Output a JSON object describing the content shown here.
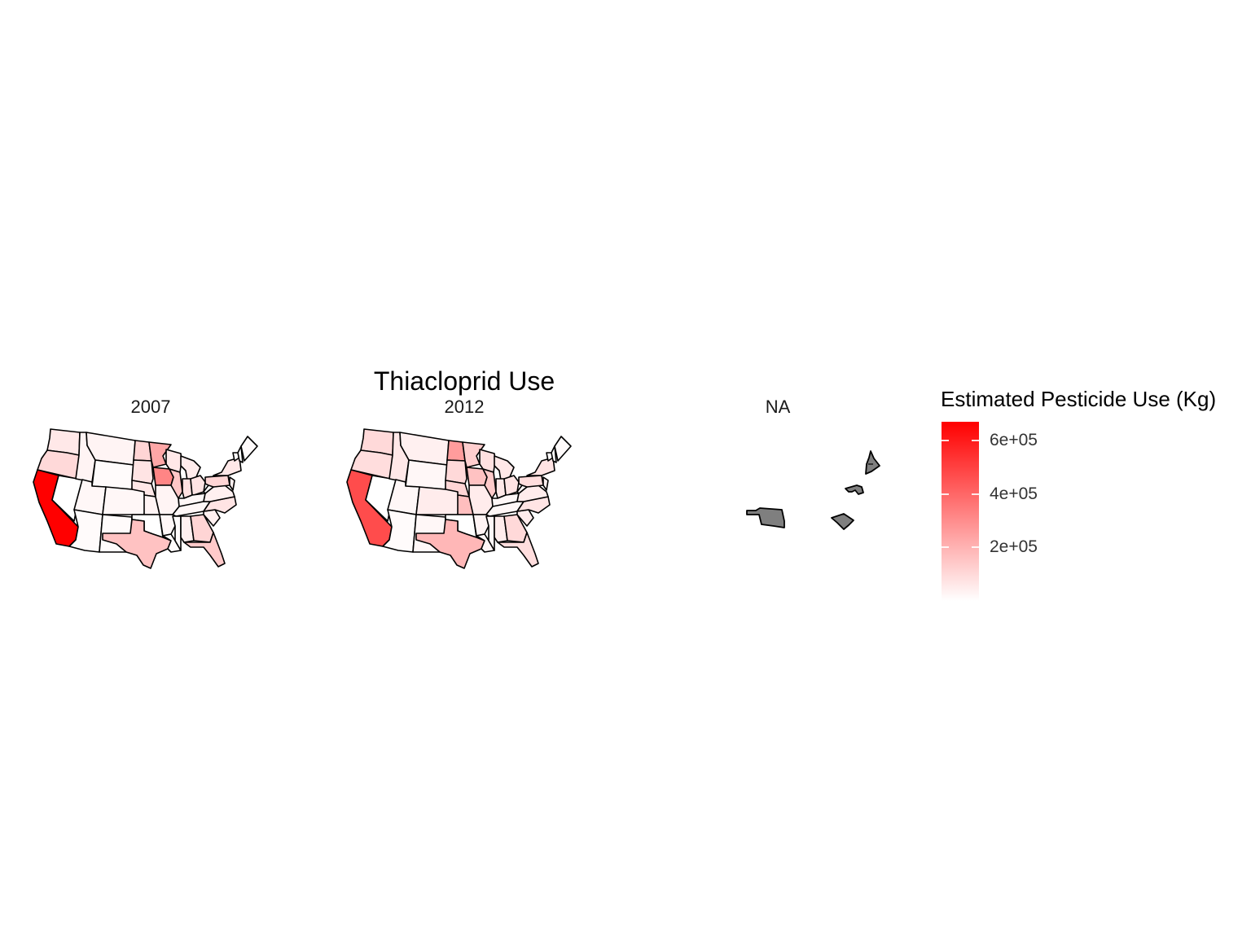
{
  "title": "Thiacloprid Use",
  "facets": [
    {
      "label": "2007"
    },
    {
      "label": "2012"
    },
    {
      "label": "NA"
    }
  ],
  "legend": {
    "title": "Estimated Pesticide Use (Kg)",
    "ticks": [
      "2e+05",
      "4e+05",
      "6e+05"
    ],
    "tick_values": [
      200000,
      400000,
      600000
    ],
    "range": [
      0,
      670000
    ],
    "low_color": "#FFFFFF",
    "high_color": "#FF0000"
  },
  "colors": {
    "state_border": "#000000",
    "na_fill": "#7F7F7F"
  },
  "chart_data": {
    "type": "choropleth",
    "region": "Contiguous United States",
    "unit": "Kg",
    "series": [
      {
        "name": "2007",
        "values": {
          "CA": 670000,
          "OR": 100000,
          "WA": 60000,
          "ID": 30000,
          "NV": 0,
          "UT": 20000,
          "AZ": 10000,
          "MT": 30000,
          "WY": 10000,
          "CO": 20000,
          "NM": 10000,
          "ND": 110000,
          "SD": 70000,
          "NE": 60000,
          "KS": 30000,
          "OK": 0,
          "TX": 160000,
          "MN": 230000,
          "IA": 320000,
          "MO": 30000,
          "AR": 20000,
          "LA": 10000,
          "WI": 60000,
          "IL": 150000,
          "MI": 50000,
          "IN": 80000,
          "OH": 70000,
          "KY": 20000,
          "TN": 20000,
          "MS": 10000,
          "AL": 40000,
          "GA": 110000,
          "FL": 140000,
          "SC": 40000,
          "NC": 70000,
          "VA": 40000,
          "WV": 10000,
          "PA": 110000,
          "NY": 60000,
          "VT": 10000,
          "NH": 0,
          "ME": 10000,
          "NJ": 40000
        }
      },
      {
        "name": "2012",
        "values": {
          "CA": 470000,
          "OR": 90000,
          "WA": 100000,
          "ID": 60000,
          "NV": 0,
          "UT": 20000,
          "AZ": 10000,
          "MT": 40000,
          "WY": 20000,
          "CO": 50000,
          "NM": 20000,
          "ND": 260000,
          "SD": 100000,
          "NE": 110000,
          "KS": 170000,
          "OK": 0,
          "TX": 190000,
          "MN": 130000,
          "IA": 160000,
          "MO": 50000,
          "AR": 30000,
          "LA": 20000,
          "WI": 80000,
          "IL": 140000,
          "MI": 60000,
          "IN": 60000,
          "OH": 70000,
          "KY": 20000,
          "TN": 20000,
          "MS": 20000,
          "AL": 50000,
          "GA": 100000,
          "FL": 90000,
          "SC": 50000,
          "NC": 70000,
          "VA": 50000,
          "WV": 20000,
          "PA": 90000,
          "NY": 70000,
          "VT": 10000,
          "NH": 0,
          "ME": 10000,
          "NJ": 40000
        }
      },
      {
        "name": "NA",
        "states_missing_data": [
          "OK",
          "SC",
          "MD",
          "NH"
        ]
      }
    ]
  }
}
